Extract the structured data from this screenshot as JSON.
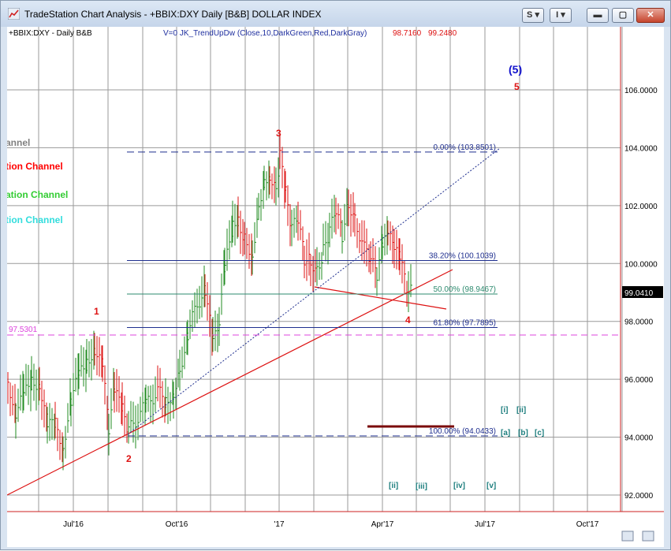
{
  "window": {
    "title": "TradeStation Chart Analysis - +BBIX:DXY Daily [B&B] DOLLAR INDEX",
    "buttons": {
      "s": "S",
      "i": "I"
    }
  },
  "chart_header": {
    "symbol": "+BBIX:DXY - Daily  B&B",
    "indicator": "V=0  JK_TrendUpDw  (Close,10,DarkGreen,Red,DarkGray)",
    "value1": "98.7160",
    "value2": "99.2480"
  },
  "legend": [
    {
      "text": "annel",
      "color": "#808080"
    },
    {
      "text": "tion Channel",
      "color": "#ff0000"
    },
    {
      "text": "ation Channel",
      "color": "#33cc33"
    },
    {
      "text": "tion Channel",
      "color": "#33dddd"
    }
  ],
  "price_axis": {
    "ticks": [
      "106.0000",
      "104.0000",
      "102.0000",
      "100.0000",
      "98.0000",
      "96.0000",
      "94.0000",
      "92.0000"
    ],
    "tick_values": [
      106,
      104,
      102,
      100,
      98,
      96,
      94,
      92
    ],
    "current_price": "99.0410",
    "range": [
      91.5,
      108.2
    ]
  },
  "time_axis": {
    "ticks": [
      "Jul'16",
      "Oct'16",
      "'17",
      "Apr'17",
      "Jul'17",
      "Oct'17"
    ]
  },
  "fib_levels": [
    {
      "label": "0.00% (103.8501)",
      "value": 103.8501,
      "color": "#1f2f8f",
      "style": "dashed"
    },
    {
      "label": "38.20% (100.1039)",
      "value": 100.1039,
      "color": "#1f2f8f",
      "style": "solid"
    },
    {
      "label": "50.00% (98.9467)",
      "value": 98.9467,
      "color": "#2e8b6f",
      "style": "solid"
    },
    {
      "label": "61.80% (97.7895)",
      "value": 97.7895,
      "color": "#1f2f8f",
      "style": "solid"
    },
    {
      "label": "100.00% (94.0433)",
      "value": 94.0433,
      "color": "#1f2f8f",
      "style": "dashed"
    }
  ],
  "horizontal_line": {
    "label": "97.5301",
    "value": 97.5301,
    "color": "#dd44dd"
  },
  "wave_labels": {
    "w1": "1",
    "w2": "2",
    "w3": "3",
    "w4": "4",
    "w5": "5",
    "w5_blue": "(5)",
    "sub_i": "[i]",
    "sub_ii": "[ii]",
    "sub_a": "[a]",
    "sub_b": "[b]",
    "sub_c": "[c]",
    "sub_ii2": "[ii]",
    "sub_iii": "[iii]",
    "sub_iv": "[iv]",
    "sub_v": "[v]"
  },
  "colors": {
    "up_bar": "#228b22",
    "down_bar": "#dd1111",
    "neutral_bar": "#777777",
    "trendline": "#dd1111",
    "dotted_line": "#1f2f8f",
    "label_teal": "#1f7f7f"
  }
}
